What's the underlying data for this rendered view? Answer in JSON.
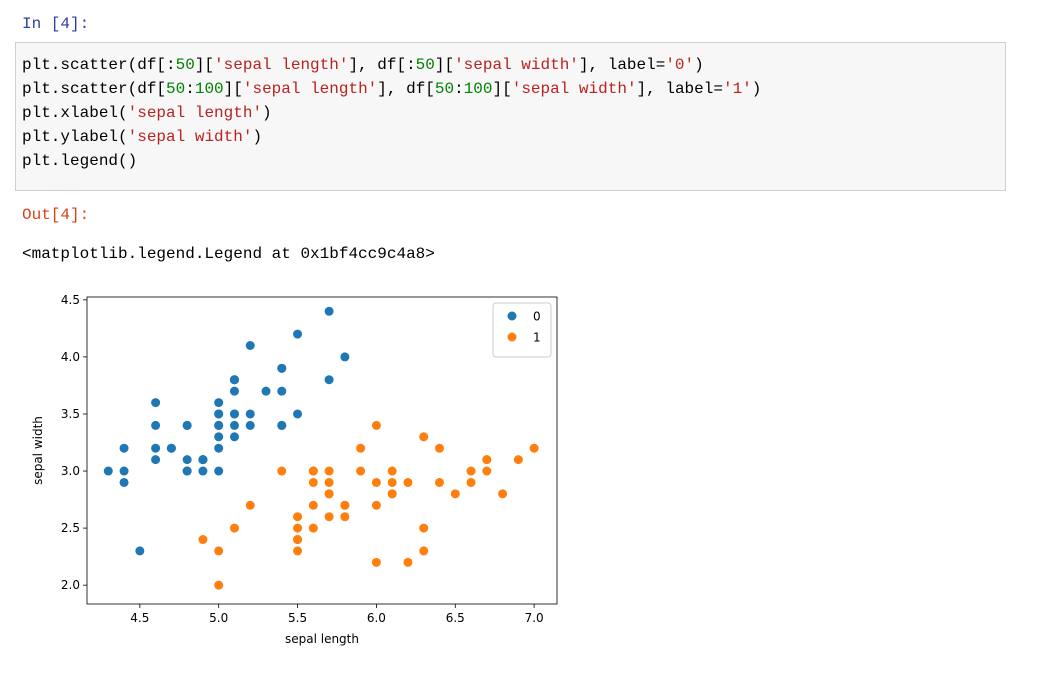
{
  "cell": {
    "in_prompt": "In [4]:",
    "code": [
      [
        {
          "text": "plt.scatter(df[:",
          "color": "#000000"
        },
        {
          "text": "50",
          "color": "#008000"
        },
        {
          "text": "][",
          "color": "#000000"
        },
        {
          "text": "'sepal length'",
          "color": "#ba2121"
        },
        {
          "text": "], df[:",
          "color": "#000000"
        },
        {
          "text": "50",
          "color": "#008000"
        },
        {
          "text": "][",
          "color": "#000000"
        },
        {
          "text": "'sepal width'",
          "color": "#ba2121"
        },
        {
          "text": "], label=",
          "color": "#000000"
        },
        {
          "text": "'0'",
          "color": "#ba2121"
        },
        {
          "text": ")",
          "color": "#000000"
        }
      ],
      [
        {
          "text": "plt.scatter(df[",
          "color": "#000000"
        },
        {
          "text": "50",
          "color": "#008000"
        },
        {
          "text": ":",
          "color": "#000000"
        },
        {
          "text": "100",
          "color": "#008000"
        },
        {
          "text": "][",
          "color": "#000000"
        },
        {
          "text": "'sepal length'",
          "color": "#ba2121"
        },
        {
          "text": "], df[",
          "color": "#000000"
        },
        {
          "text": "50",
          "color": "#008000"
        },
        {
          "text": ":",
          "color": "#000000"
        },
        {
          "text": "100",
          "color": "#008000"
        },
        {
          "text": "][",
          "color": "#000000"
        },
        {
          "text": "'sepal width'",
          "color": "#ba2121"
        },
        {
          "text": "], label=",
          "color": "#000000"
        },
        {
          "text": "'1'",
          "color": "#ba2121"
        },
        {
          "text": ")",
          "color": "#000000"
        }
      ],
      [
        {
          "text": "plt.xlabel(",
          "color": "#000000"
        },
        {
          "text": "'sepal length'",
          "color": "#ba2121"
        },
        {
          "text": ")",
          "color": "#000000"
        }
      ],
      [
        {
          "text": "plt.ylabel(",
          "color": "#000000"
        },
        {
          "text": "'sepal width'",
          "color": "#ba2121"
        },
        {
          "text": ")",
          "color": "#000000"
        }
      ],
      [
        {
          "text": "plt.legend()",
          "color": "#000000"
        }
      ]
    ],
    "out_prompt": "Out[4]:",
    "output_text": "<matplotlib.legend.Legend at 0x1bf4cc9c4a8>"
  },
  "chart_data": {
    "type": "scatter",
    "x_label": "sepal length",
    "y_label": "sepal width",
    "legend": "upper right",
    "xlim": [
      4.165,
      7.145
    ],
    "ylim": [
      1.835,
      4.525
    ],
    "xticks": [
      4.5,
      {
        "value": 5,
        "label": "5.0"
      },
      5.5,
      {
        "value": 6,
        "label": "6.0"
      },
      6.5,
      {
        "value": 7,
        "label": "7.0"
      }
    ],
    "yticks": [
      {
        "value": 2,
        "label": "2.0"
      },
      2.5,
      {
        "value": 3,
        "label": "3.0"
      },
      3.5,
      {
        "value": 4,
        "label": "4.0"
      },
      4.5
    ],
    "series": [
      {
        "name": "0",
        "color": "#1f77b4",
        "x": [
          5.1,
          4.9,
          4.7,
          4.6,
          5.0,
          5.4,
          4.6,
          5.0,
          4.4,
          4.9,
          5.4,
          4.8,
          4.8,
          4.3,
          5.8,
          5.7,
          5.4,
          5.1,
          5.7,
          5.1,
          5.4,
          5.1,
          4.6,
          5.1,
          4.8,
          5.0,
          5.0,
          5.2,
          5.2,
          4.7,
          4.8,
          5.4,
          5.2,
          5.5,
          4.9,
          5.0,
          5.5,
          4.9,
          4.4,
          5.1,
          5.0,
          4.5,
          4.4,
          5.0,
          5.1,
          4.8,
          5.1,
          4.6,
          5.3,
          5.0
        ],
        "values": [
          3.5,
          3.0,
          3.2,
          3.1,
          3.6,
          3.9,
          3.4,
          3.4,
          2.9,
          3.1,
          3.7,
          3.4,
          3.0,
          3.0,
          4.0,
          4.4,
          3.9,
          3.5,
          3.8,
          3.8,
          3.4,
          3.7,
          3.6,
          3.3,
          3.4,
          3.0,
          3.4,
          3.5,
          3.4,
          3.2,
          3.1,
          3.4,
          4.1,
          4.2,
          3.1,
          3.2,
          3.5,
          3.1,
          3.0,
          3.4,
          3.5,
          2.3,
          3.2,
          3.5,
          3.8,
          3.0,
          3.8,
          3.2,
          3.7,
          3.3
        ]
      },
      {
        "name": "1",
        "color": "#ff7f0e",
        "x": [
          7.0,
          6.4,
          6.9,
          5.5,
          6.5,
          5.7,
          6.3,
          4.9,
          6.6,
          5.2,
          5.0,
          5.9,
          6.0,
          6.1,
          5.6,
          6.7,
          5.6,
          5.8,
          6.2,
          5.6,
          5.9,
          6.1,
          6.3,
          6.1,
          6.4,
          6.6,
          6.8,
          6.7,
          6.0,
          5.7,
          5.5,
          5.5,
          5.8,
          6.0,
          5.4,
          6.0,
          6.7,
          6.3,
          5.6,
          5.5,
          5.5,
          6.1,
          5.8,
          5.0,
          5.6,
          5.7,
          5.7,
          6.2,
          5.1,
          5.7
        ],
        "values": [
          3.2,
          3.2,
          3.1,
          2.3,
          2.8,
          2.8,
          3.3,
          2.4,
          2.9,
          2.7,
          2.0,
          3.0,
          2.2,
          2.9,
          2.9,
          3.1,
          3.0,
          2.7,
          2.2,
          2.5,
          3.2,
          2.8,
          2.5,
          2.8,
          2.9,
          3.0,
          2.8,
          3.0,
          2.9,
          2.6,
          2.4,
          2.4,
          2.7,
          2.7,
          3.0,
          3.4,
          3.1,
          2.3,
          3.0,
          2.5,
          2.6,
          3.0,
          2.6,
          2.3,
          2.7,
          3.0,
          2.9,
          2.9,
          2.5,
          2.8
        ]
      }
    ]
  }
}
